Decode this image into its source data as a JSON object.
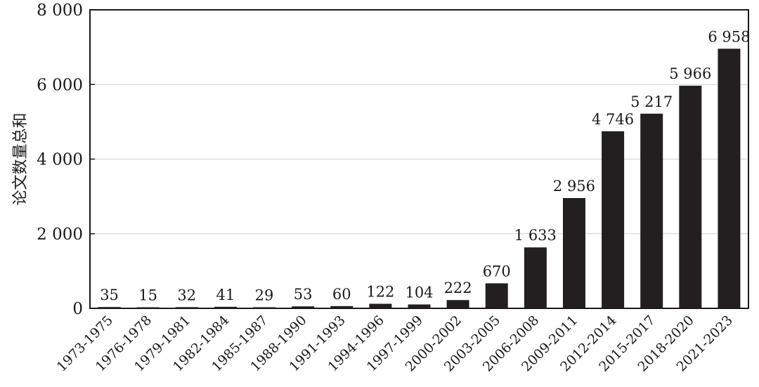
{
  "chart_data": {
    "type": "bar",
    "title": "",
    "xlabel": "",
    "ylabel": "论文数量总和",
    "ylim": [
      0,
      8000
    ],
    "yticks": [
      0,
      2000,
      4000,
      6000,
      8000
    ],
    "ytick_labels": [
      "0",
      "2 000",
      "4 000",
      "6 000",
      "8 000"
    ],
    "grid": true,
    "bar_color": "#231f20",
    "categories": [
      "1973-1975",
      "1976-1978",
      "1979-1981",
      "1982-1984",
      "1985-1987",
      "1988-1990",
      "1991-1993",
      "1994-1996",
      "1997-1999",
      "2000-2002",
      "2003-2005",
      "2006-2008",
      "2009-2011",
      "2012-2014",
      "2015-2017",
      "2018-2020",
      "2021-2023"
    ],
    "values": [
      35,
      15,
      32,
      41,
      29,
      53,
      60,
      122,
      104,
      222,
      670,
      1633,
      2956,
      4746,
      5217,
      5966,
      6958
    ],
    "value_labels": [
      "35",
      "15",
      "32",
      "41",
      "29",
      "53",
      "60",
      "122",
      "104",
      "222",
      "670",
      "1 633",
      "2 956",
      "4 746",
      "5 217",
      "5 966",
      "6 958"
    ]
  }
}
